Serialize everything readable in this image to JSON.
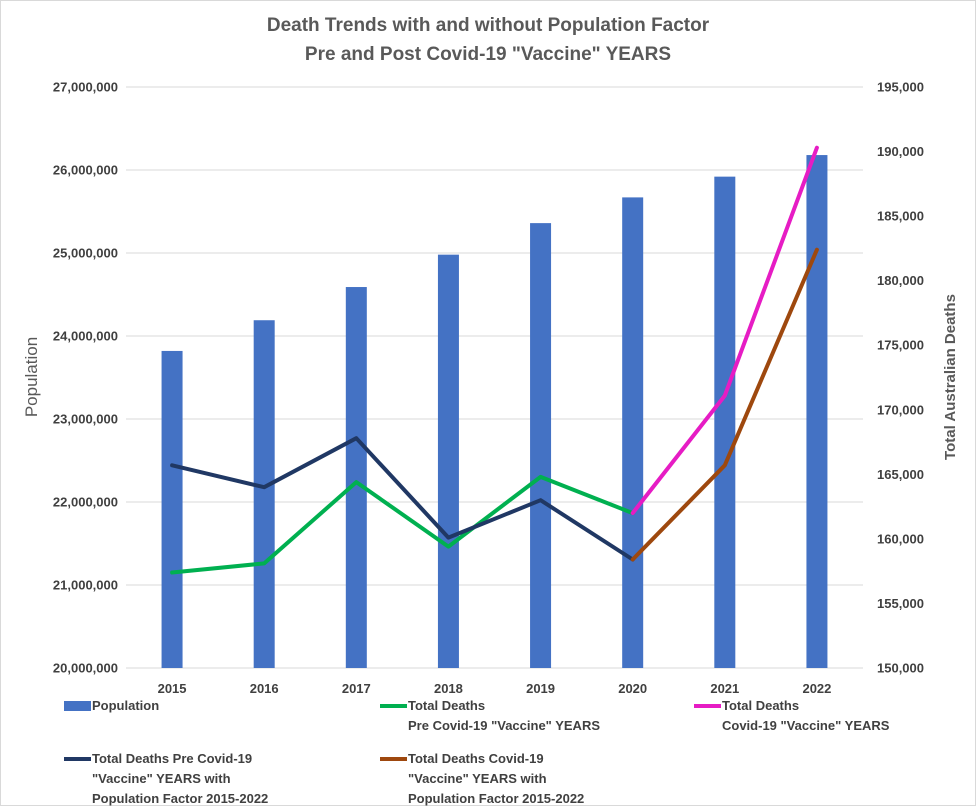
{
  "chart_data": {
    "type": "bar",
    "title": [
      "Death Trends with and without Population Factor",
      "Pre and Post Covid-19 \"Vaccine\" YEARS"
    ],
    "categories": [
      "2015",
      "2016",
      "2017",
      "2018",
      "2019",
      "2020",
      "2021",
      "2022"
    ],
    "y_left": {
      "label": "Population",
      "range": [
        20000000,
        27000000
      ],
      "ticks": [
        "20,000,000",
        "21,000,000",
        "22,000,000",
        "23,000,000",
        "24,000,000",
        "25,000,000",
        "26,000,000",
        "27,000,000"
      ]
    },
    "y_right": {
      "label": "Total Australian Deaths",
      "range": [
        150000,
        195000
      ],
      "ticks": [
        "150,000",
        "155,000",
        "160,000",
        "165,000",
        "170,000",
        "175,000",
        "180,000",
        "185,000",
        "190,000",
        "195,000"
      ]
    },
    "grid": true,
    "legend_position": "bottom",
    "series": [
      {
        "name": "Population",
        "kind": "bar",
        "axis": "left",
        "color": "#4472c4",
        "values": [
          23820000,
          24190000,
          24590000,
          24980000,
          25360000,
          25670000,
          25920000,
          26180000
        ]
      },
      {
        "name": "Total Deaths\nPre Covid-19 \"Vaccine\" YEARS",
        "kind": "line",
        "axis": "right",
        "color": "#00b050",
        "values": [
          157400,
          158100,
          164400,
          159400,
          164800,
          162000,
          null,
          null
        ]
      },
      {
        "name": "Total Deaths\nCovid-19 \"Vaccine\" YEARS",
        "kind": "line",
        "axis": "right",
        "color": "#e61cc4",
        "values": [
          null,
          null,
          null,
          null,
          null,
          162000,
          171100,
          190300
        ]
      },
      {
        "name": "Total Deaths Pre Covid-19\n\"Vaccine\" YEARS with\nPopulation Factor 2015-2022",
        "kind": "line",
        "axis": "right",
        "color": "#203864",
        "values": [
          165700,
          164000,
          167800,
          160100,
          163000,
          158400,
          null,
          null
        ]
      },
      {
        "name": "Total Deaths Covid-19\n\"Vaccine\" YEARS with\nPopulation Factor 2015-2022",
        "kind": "line",
        "axis": "right",
        "color": "#9e480e",
        "values": [
          null,
          null,
          null,
          null,
          null,
          158400,
          165700,
          182400
        ]
      }
    ]
  }
}
